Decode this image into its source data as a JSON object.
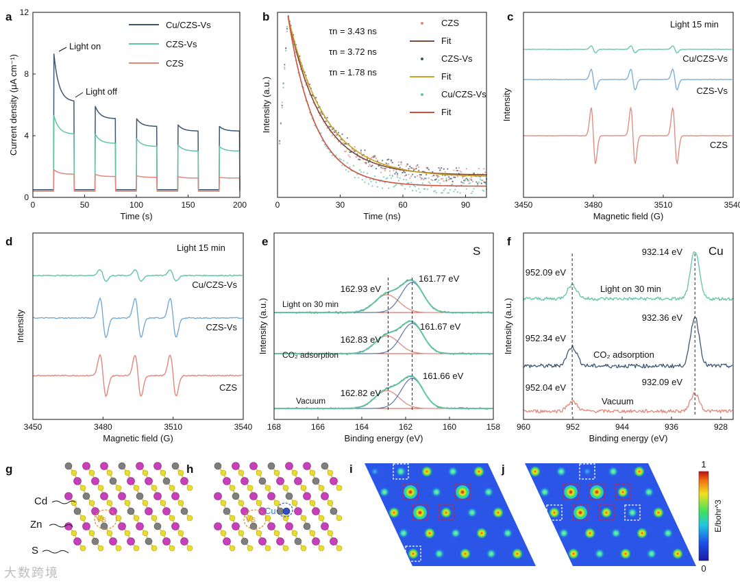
{
  "colors": {
    "dark": "#3a5672",
    "teal": "#5fc4a4",
    "salmon": "#e0867a",
    "blue": "#74a9d3",
    "fitBrown": "#7a4a3a",
    "fitGold": "#c8a020",
    "fitRed": "#d05040",
    "purple": "#c640b9",
    "yellow": "#e8dc30",
    "grey": "#7e7e7e"
  },
  "watermark": "大数跨境",
  "chart_data": [
    {
      "panel": "a",
      "type": "line",
      "xlabel": "Time (s)",
      "ylabel": "Current density (μA cm⁻¹)",
      "xlim": [
        0,
        200
      ],
      "ylim": [
        0,
        12
      ],
      "xticks": [
        0,
        50,
        100,
        150,
        200
      ],
      "yticks": [
        0,
        4,
        8,
        12
      ],
      "annotations": [
        "Light on",
        "Light off"
      ],
      "cycles": [
        [
          20,
          40
        ],
        [
          60,
          80
        ],
        [
          100,
          120
        ],
        [
          140,
          160
        ],
        [
          180,
          200
        ]
      ],
      "series": [
        {
          "name": "Cu/CZS-Vs",
          "color": "#3a5672",
          "off": 0.5,
          "peaks": [
            9.3,
            5.9,
            5.1,
            4.7,
            4.6
          ],
          "ends": [
            6.2,
            5.1,
            4.6,
            4.3,
            4.3
          ]
        },
        {
          "name": "CZS-Vs",
          "color": "#5fc4a4",
          "off": 0.45,
          "peaks": [
            5.3,
            4.1,
            3.8,
            3.4,
            3.3
          ],
          "ends": [
            4.1,
            3.5,
            3.3,
            3.0,
            3.0
          ]
        },
        {
          "name": "CZS",
          "color": "#e0867a",
          "off": 0.4,
          "peaks": [
            1.8,
            1.5,
            1.4,
            1.35,
            1.3
          ],
          "ends": [
            1.5,
            1.35,
            1.3,
            1.25,
            1.25
          ]
        }
      ]
    },
    {
      "panel": "b",
      "type": "scatter",
      "xlabel": "Time (ns)",
      "ylabel": "Intensity (a.u.)",
      "xlim": [
        0,
        100
      ],
      "xticks": [
        0,
        30,
        60,
        90
      ],
      "annotations": [
        "τn = 3.43 ns",
        "τn = 3.72 ns",
        "τn = 1.78 ns"
      ],
      "legend": [
        "CZS",
        "Fit",
        "CZS-Vs",
        "Fit",
        "Cu/CZS-Vs",
        "Fit"
      ],
      "series": [
        {
          "name": "CZS",
          "color": "#e0867a",
          "floor": 0.12,
          "tau": 16,
          "fit_color": "#7a4a3a"
        },
        {
          "name": "CZS-Vs",
          "color": "#3a5672",
          "floor": 0.11,
          "tau": 18,
          "fit_color": "#c8a020"
        },
        {
          "name": "Cu/CZS-Vs",
          "color": "#5fc4a4",
          "floor": 0.06,
          "tau": 13,
          "fit_color": "#d05040"
        }
      ]
    },
    {
      "panel": "c",
      "type": "line",
      "xlabel": "Magnetic field (G)",
      "ylabel": "Intensity",
      "xlim": [
        3450,
        3540
      ],
      "xticks": [
        3450,
        3480,
        3510,
        3540
      ],
      "annotations": [
        "Light 15 min"
      ],
      "peaks": [
        3480,
        3497,
        3515
      ],
      "series": [
        {
          "name": "Cu/CZS-Vs",
          "color": "#5fc4a4",
          "amp": 0.12
        },
        {
          "name": "CZS-Vs",
          "color": "#74a9d3",
          "amp": 0.35
        },
        {
          "name": "CZS",
          "color": "#e0867a",
          "amp": 0.95
        }
      ]
    },
    {
      "panel": "d",
      "type": "line",
      "xlabel": "Magnetic field (G)",
      "ylabel": "Intensity",
      "xlim": [
        3450,
        3540
      ],
      "xticks": [
        3450,
        3480,
        3510,
        3540
      ],
      "annotations": [
        "Light 15 min"
      ],
      "peaks": [
        3480,
        3495,
        3510
      ],
      "series": [
        {
          "name": "Cu/CZS-Vs",
          "color": "#5fc4a4",
          "amp": 0.28
        },
        {
          "name": "CZS-Vs",
          "color": "#74a9d3",
          "amp": 0.95
        },
        {
          "name": "CZS",
          "color": "#e0867a",
          "amp": 1.0
        }
      ]
    },
    {
      "panel": "e",
      "type": "line",
      "label": "S",
      "xlabel": "Binding energy (eV)",
      "ylabel": "Intensity (a.u.)",
      "xlim": [
        168,
        158
      ],
      "xticks": [
        168,
        166,
        164,
        162,
        160,
        158
      ],
      "dashed_x": [
        162.8,
        161.7
      ],
      "series": [
        {
          "name": "Light on 30 min",
          "peaks": [
            "162.93 eV",
            "161.77 eV"
          ]
        },
        {
          "name": "CO₂ adsorption",
          "peaks": [
            "162.83 eV",
            "161.67 eV"
          ]
        },
        {
          "name": "Vacuum",
          "peaks": [
            "162.82 eV",
            "161.66 eV"
          ]
        }
      ]
    },
    {
      "panel": "f",
      "type": "line",
      "label": "Cu",
      "xlabel": "Binding energy (eV)",
      "ylabel": "Intensity (a.u.)",
      "xlim": [
        960,
        926
      ],
      "xticks": [
        960,
        952,
        944,
        936,
        928
      ],
      "dashed_x": [
        952.1,
        932.2
      ],
      "series": [
        {
          "name": "Light on 30 min",
          "color": "#5fc4a4",
          "peaks": [
            "952.09 eV",
            "932.14 eV"
          ]
        },
        {
          "name": "CO₂ adsorption",
          "color": "#3a5672",
          "peaks": [
            "952.34 eV",
            "932.36 eV"
          ]
        },
        {
          "name": "Vacuum",
          "color": "#e0867a",
          "peaks": [
            "952.04 eV",
            "932.09 eV"
          ]
        }
      ]
    }
  ],
  "structure_labels": {
    "cd": "Cd",
    "zn": "Zn",
    "s": "S",
    "vs": "Vs",
    "cu": "Cu"
  },
  "colorbar": {
    "max": "1",
    "min": "0",
    "label": "E/bohr^3"
  },
  "panel_letters": [
    "a",
    "b",
    "c",
    "d",
    "e",
    "f",
    "g",
    "h",
    "i",
    "j"
  ]
}
